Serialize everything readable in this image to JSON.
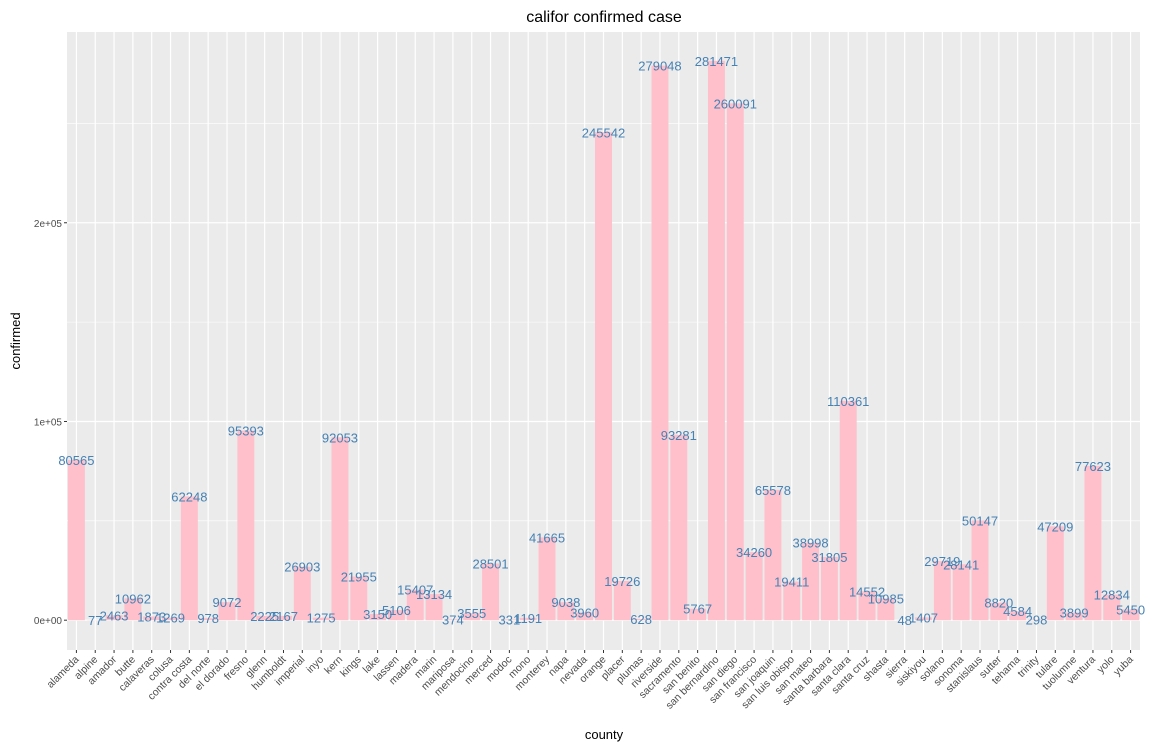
{
  "chart_data": {
    "type": "bar",
    "title": "califor confirmed case",
    "xlabel": "county",
    "ylabel": "confirmed",
    "ylim": [
      -15000,
      296000
    ],
    "yticks": [
      0,
      100000,
      200000
    ],
    "ytick_labels": [
      "0e+00",
      "1e+05",
      "2e+05"
    ],
    "grid": true,
    "bar_color": "#ffc0cb",
    "label_color": "#4682b4",
    "panel_color": "#ebebeb",
    "categories": [
      "alameda",
      "alpine",
      "amador",
      "butte",
      "calaveras",
      "colusa",
      "contra costa",
      "del norte",
      "el dorado",
      "fresno",
      "glenn",
      "humboldt",
      "imperial",
      "inyo",
      "kern",
      "kings",
      "lake",
      "lassen",
      "madera",
      "marin",
      "mariposa",
      "mendocino",
      "merced",
      "modoc",
      "mono",
      "monterey",
      "napa",
      "nevada",
      "orange",
      "placer",
      "plumas",
      "riverside",
      "sacramento",
      "san benito",
      "san bernardino",
      "san diego",
      "san francisco",
      "san joaquin",
      "san luis obispo",
      "san mateo",
      "santa barbara",
      "santa clara",
      "santa cruz",
      "shasta",
      "sierra",
      "siskiyou",
      "solano",
      "sonoma",
      "stanislaus",
      "sutter",
      "tehama",
      "trinity",
      "tulare",
      "tuolumne",
      "ventura",
      "yolo",
      "yuba"
    ],
    "values": [
      80565,
      77,
      2463,
      10962,
      1873,
      1269,
      62248,
      978,
      9072,
      95393,
      2225,
      2167,
      26903,
      1275,
      92053,
      21955,
      3150,
      5106,
      15407,
      13134,
      374,
      3555,
      28501,
      331,
      1191,
      41665,
      9038,
      3960,
      245542,
      19726,
      628,
      279048,
      93281,
      5767,
      281471,
      260091,
      34260,
      65578,
      19411,
      38998,
      31805,
      110361,
      14552,
      10985,
      48,
      1407,
      29719,
      28141,
      50147,
      8820,
      4584,
      298,
      47209,
      3899,
      77623,
      12834,
      5450
    ],
    "data_labels": [
      "80565",
      "77",
      "2463",
      "10962",
      "1873",
      "1269",
      "62248",
      "978",
      "9072",
      "95393",
      "2225",
      "2167",
      "26903",
      "1275",
      "92053",
      "21955",
      "3150",
      "5106",
      "15407",
      "13134",
      "374",
      "3555",
      "28501",
      "331",
      "1191",
      "41665",
      "9038",
      "3960",
      "245542",
      "19726",
      "628",
      "279048",
      "93281",
      "5767",
      "281471",
      "260091",
      "34260",
      "65578",
      "19411",
      "38998",
      "31805",
      "110361",
      "14552",
      "10985",
      "48",
      "1407",
      "29719",
      "28141",
      "50147",
      "8820",
      "4584",
      "298",
      "47209",
      "3899",
      "77623",
      "12834",
      "5450"
    ]
  }
}
